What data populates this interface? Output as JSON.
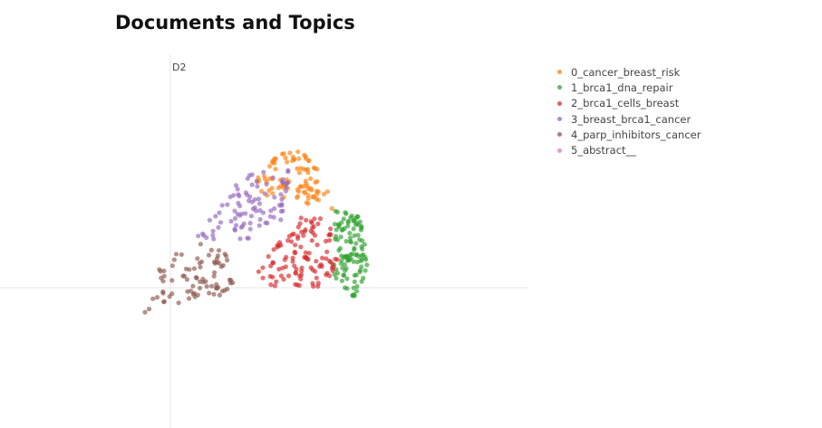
{
  "chart_data": {
    "type": "scatter",
    "title": "Documents and Topics",
    "ylabel": "D2",
    "xlabel": "",
    "grid": false,
    "legend_position": "top-right",
    "series": [
      {
        "name": "0_cancer_breast_risk",
        "color": "#ff7f0e",
        "n": 90,
        "polygon": [
          [
            0.45,
            0.55
          ],
          [
            0.6,
            0.78
          ],
          [
            0.75,
            0.8
          ],
          [
            0.95,
            0.6
          ],
          [
            0.95,
            0.45
          ],
          [
            0.7,
            0.5
          ]
        ]
      },
      {
        "name": "1_brca1_dna_repair",
        "color": "#2ca02c",
        "n": 110,
        "polygon": [
          [
            0.95,
            0.45
          ],
          [
            1.1,
            0.43
          ],
          [
            1.15,
            0.12
          ],
          [
            1.07,
            -0.06
          ],
          [
            0.95,
            0.05
          ]
        ]
      },
      {
        "name": "2_brca1_cells_breast",
        "color": "#d62728",
        "n": 110,
        "polygon": [
          [
            0.5,
            0.1
          ],
          [
            0.75,
            0.42
          ],
          [
            0.92,
            0.42
          ],
          [
            0.98,
            0.12
          ],
          [
            0.85,
            0.0
          ],
          [
            0.55,
            0.0
          ]
        ]
      },
      {
        "name": "3_breast_brca1_cancer",
        "color": "#9467bd",
        "n": 90,
        "polygon": [
          [
            0.15,
            0.3
          ],
          [
            0.25,
            0.42
          ],
          [
            0.4,
            0.65
          ],
          [
            0.7,
            0.7
          ],
          [
            0.65,
            0.4
          ],
          [
            0.4,
            0.25
          ]
        ]
      },
      {
        "name": "4_parp_inhibitors_cancer",
        "color": "#8c564b",
        "n": 80,
        "polygon": [
          [
            -0.15,
            -0.15
          ],
          [
            -0.05,
            0.15
          ],
          [
            0.2,
            0.3
          ],
          [
            0.45,
            0.1
          ],
          [
            0.3,
            -0.05
          ]
        ]
      },
      {
        "name": "5_abstract__",
        "color": "#e377c2",
        "n": 0,
        "polygon": []
      }
    ],
    "x_range": [
      -1.9,
      1.9
    ],
    "y_range": [
      -1.1,
      1.5
    ]
  }
}
